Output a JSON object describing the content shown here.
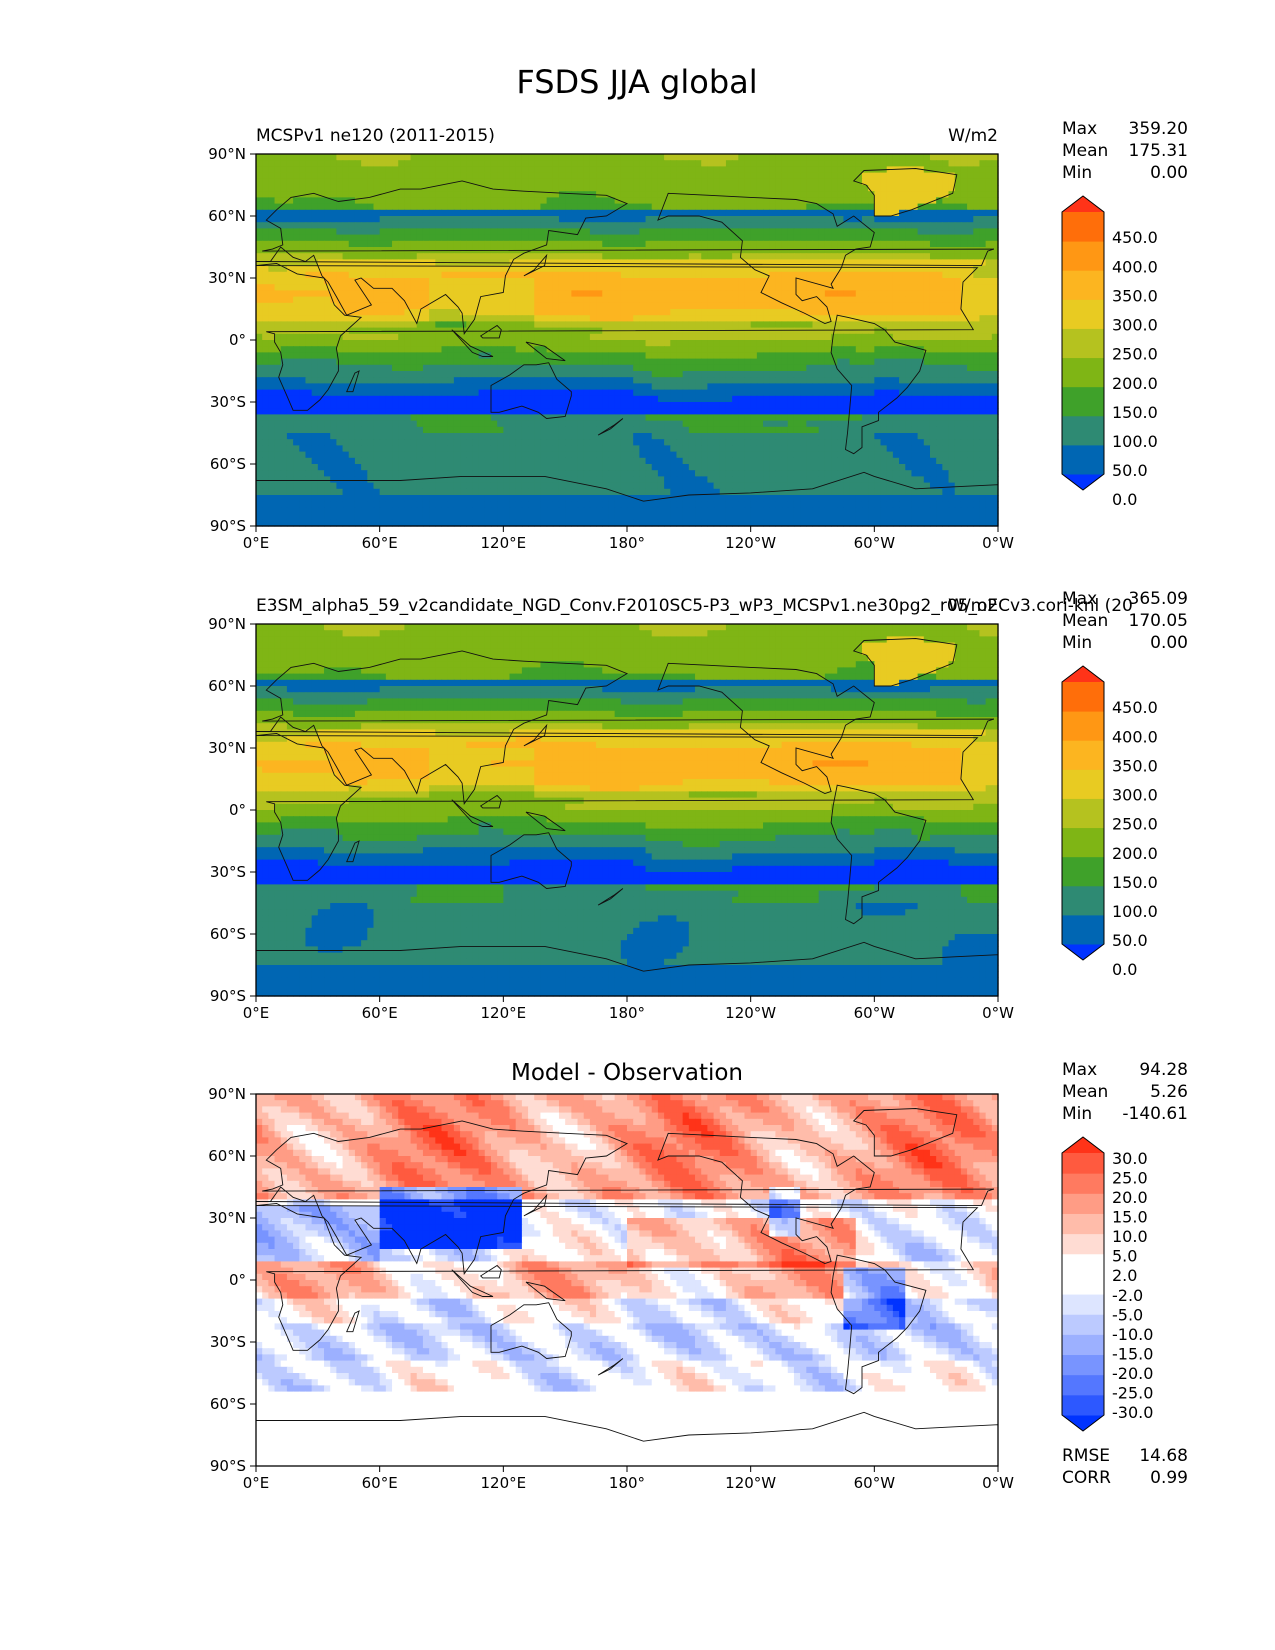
{
  "figure": {
    "title": "FSDS JJA global"
  },
  "tick_labels": {
    "lat": [
      "90°N",
      "60°N",
      "30°N",
      "0°",
      "30°S",
      "60°S",
      "90°S"
    ],
    "lon": [
      "0°E",
      "60°E",
      "120°E",
      "180°",
      "120°W",
      "60°W",
      "0°W"
    ]
  },
  "stat_labels": {
    "max": "Max",
    "mean": "Mean",
    "min": "Min",
    "rmse": "RMSE",
    "corr": "CORR"
  },
  "colors": {
    "fsds_levels": [
      "#0033ff",
      "#0066b3",
      "#2e8a73",
      "#3fa12a",
      "#7fb515",
      "#b5c21f",
      "#e8cb22",
      "#fcb520",
      "#ff9714",
      "#ff6e0a",
      "#ff3318"
    ],
    "diff_levels": [
      "#0033ff",
      "#2d58ff",
      "#5477ff",
      "#7894ff",
      "#9cb0ff",
      "#bccaff",
      "#dde5ff",
      "#ffffff",
      "#ffffff",
      "#ffdcd3",
      "#ffbcaa",
      "#ff9c85",
      "#ff7a60",
      "#ff5a3f",
      "#ff3318"
    ]
  },
  "chart_data": [
    {
      "type": "heatmap",
      "id": "test",
      "title": "MCSPv1 ne120 (2011-2015)",
      "units": "W/m2",
      "xlim": [
        0,
        360
      ],
      "ylim": [
        -90,
        90
      ],
      "stats": {
        "max": "359.20",
        "mean": "175.31",
        "min": "0.00"
      },
      "colorbar_ticks": [
        "450.0",
        "400.0",
        "350.0",
        "300.0",
        "250.0",
        "200.0",
        "150.0",
        "100.0",
        "50.0",
        "0.0"
      ]
    },
    {
      "type": "heatmap",
      "id": "reference",
      "title": "E3SM_alpha5_59_v2candidate_NGD_Conv.F2010SC5-P3_wP3_MCSPv1.ne30pg2_r05_oECv3.cori-knl (20",
      "units": "W/m2",
      "xlim": [
        0,
        360
      ],
      "ylim": [
        -90,
        90
      ],
      "stats": {
        "max": "365.09",
        "mean": "170.05",
        "min": "0.00"
      },
      "colorbar_ticks": [
        "450.0",
        "400.0",
        "350.0",
        "300.0",
        "250.0",
        "200.0",
        "150.0",
        "100.0",
        "50.0",
        "0.0"
      ]
    },
    {
      "type": "heatmap",
      "id": "diff",
      "title": "Model - Observation",
      "units": "",
      "xlim": [
        0,
        360
      ],
      "ylim": [
        -90,
        90
      ],
      "stats": {
        "max": "94.28",
        "mean": "5.26",
        "min": "-140.61",
        "rmse": "14.68",
        "corr": "0.99"
      },
      "colorbar_ticks": [
        "30.0",
        "25.0",
        "20.0",
        "15.0",
        "10.0",
        "5.0",
        "2.0",
        "-2.0",
        "-5.0",
        "-10.0",
        "-15.0",
        "-20.0",
        "-25.0",
        "-30.0"
      ]
    }
  ]
}
